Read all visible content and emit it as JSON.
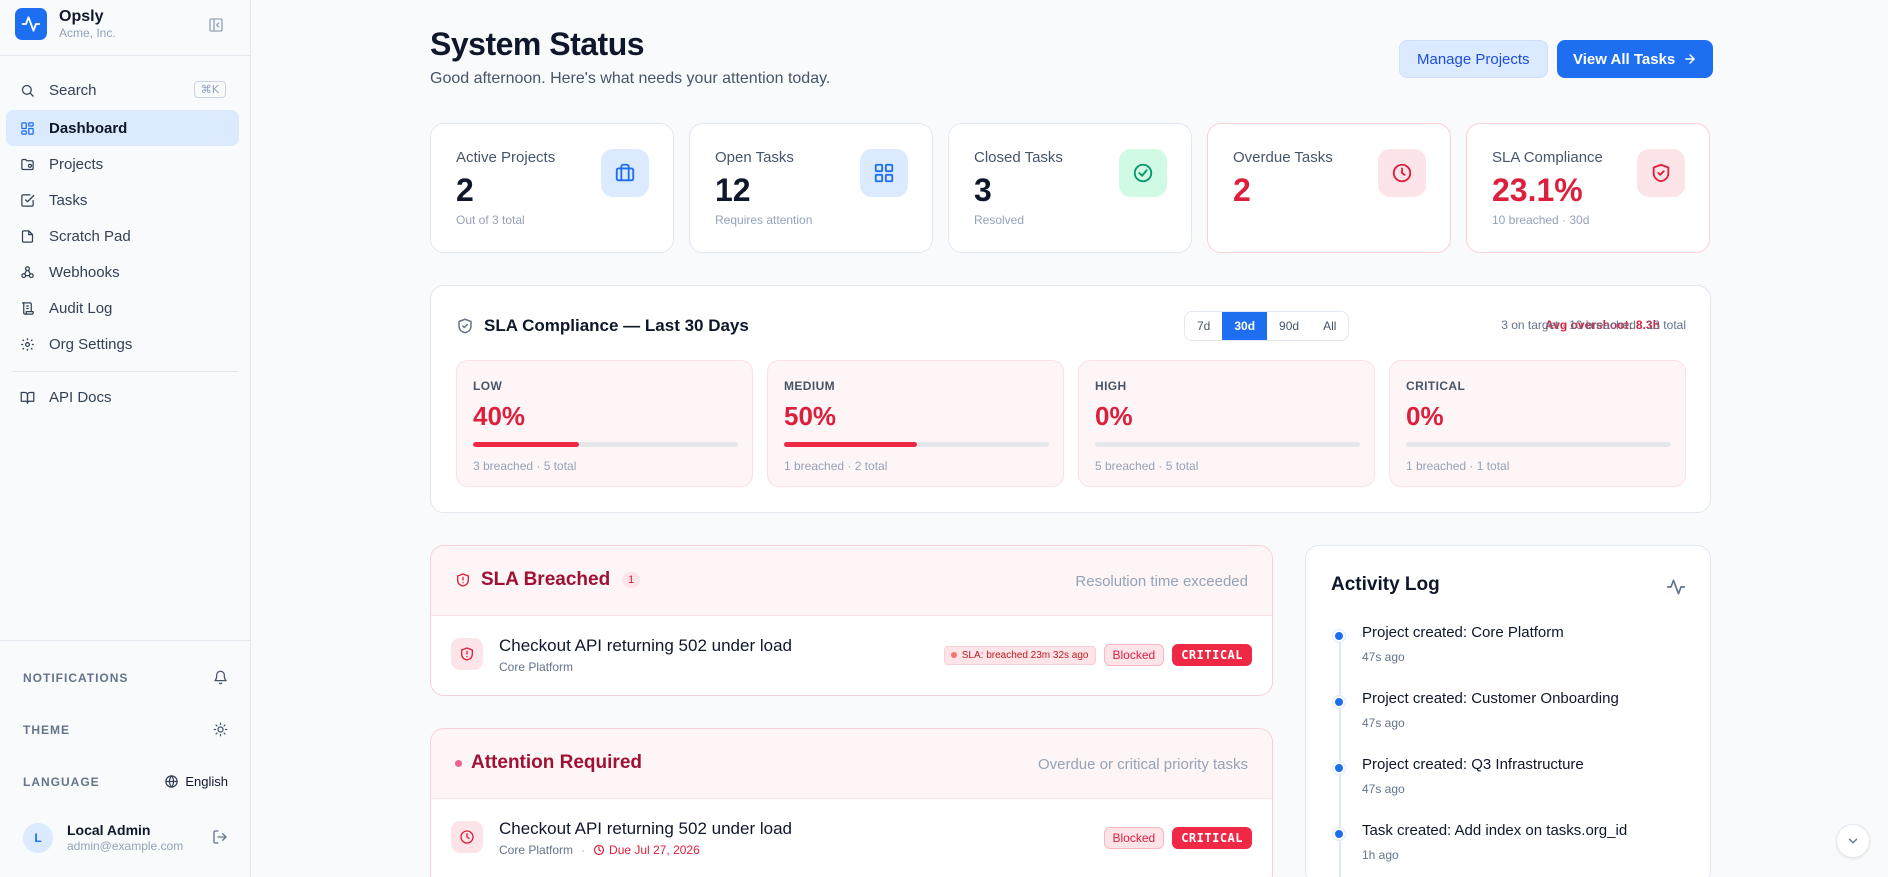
{
  "brand": {
    "name": "Opsly",
    "org": "Acme, Inc."
  },
  "sidebar": {
    "search": {
      "label": "Search",
      "shortcut": "⌘K"
    },
    "items": [
      {
        "label": "Dashboard",
        "icon": "grid-icon",
        "active": true
      },
      {
        "label": "Projects",
        "icon": "folder-icon"
      },
      {
        "label": "Tasks",
        "icon": "check-square-icon"
      },
      {
        "label": "Scratch Pad",
        "icon": "file-icon"
      },
      {
        "label": "Webhooks",
        "icon": "webhook-icon"
      },
      {
        "label": "Audit Log",
        "icon": "scroll-icon"
      },
      {
        "label": "Org Settings",
        "icon": "gear-icon"
      }
    ],
    "api_docs": {
      "label": "API Docs",
      "icon": "book-icon"
    },
    "notifications_label": "NOTIFICATIONS",
    "theme_label": "THEME",
    "language_label": "LANGUAGE",
    "language_value": "English",
    "user": {
      "initial": "L",
      "name": "Local Admin",
      "email": "admin@example.com"
    }
  },
  "header": {
    "title": "System Status",
    "subtitle": "Good afternoon. Here's what needs your attention today.",
    "manage_projects": "Manage Projects",
    "view_all_tasks": "View All Tasks"
  },
  "stats": [
    {
      "label": "Active Projects",
      "value": "2",
      "sub": "Out of 3 total",
      "icon": "briefcase-icon",
      "color": "#1d6ef0"
    },
    {
      "label": "Open Tasks",
      "value": "12",
      "sub": "Requires attention",
      "icon": "grid-icon",
      "color": "#1d6ef0"
    },
    {
      "label": "Closed Tasks",
      "value": "3",
      "sub": "Resolved",
      "icon": "check-circle-icon",
      "color": "#059669"
    },
    {
      "label": "Overdue Tasks",
      "value": "2",
      "sub": "",
      "icon": "clock-icon",
      "color": "#dc1f3d"
    },
    {
      "label": "SLA Compliance",
      "value": "23.1%",
      "sub": "10 breached · 30d",
      "icon": "shield-check-icon",
      "color": "#dc1f3d"
    }
  ],
  "sla": {
    "title": "SLA Compliance — Last 30 Days",
    "ranges": [
      "7d",
      "30d",
      "90d",
      "All"
    ],
    "selected_range": "30d",
    "overshoot": "Avg overshoot: 8.3h",
    "summary": "3 on target · 10 breached · 13 total",
    "priorities": [
      {
        "name": "LOW",
        "pct": "40%",
        "fill": 0.4,
        "sub": "3 breached · 5 total"
      },
      {
        "name": "MEDIUM",
        "pct": "50%",
        "fill": 0.5,
        "sub": "1 breached · 2 total"
      },
      {
        "name": "HIGH",
        "pct": "0%",
        "fill": 0,
        "sub": "5 breached · 5 total"
      },
      {
        "name": "CRITICAL",
        "pct": "0%",
        "fill": 0,
        "sub": "1 breached · 1 total"
      }
    ]
  },
  "breached": {
    "title": "SLA Breached",
    "count": "1",
    "note": "Resolution time exceeded",
    "task": {
      "title": "Checkout API returning 502 under load",
      "project": "Core Platform",
      "sla_tag": "SLA: breached 23m 32s ago",
      "status": "Blocked",
      "priority": "CRITICAL"
    }
  },
  "attention": {
    "title": "Attention Required",
    "note": "Overdue or critical priority tasks",
    "task": {
      "title": "Checkout API returning 502 under load",
      "project": "Core Platform",
      "separator": "·",
      "due": "Due Jul 27, 2026",
      "status": "Blocked",
      "priority": "CRITICAL"
    }
  },
  "activity": {
    "title": "Activity Log",
    "items": [
      {
        "text": "Project created: Core Platform",
        "time": "47s ago"
      },
      {
        "text": "Project created: Customer Onboarding",
        "time": "47s ago"
      },
      {
        "text": "Project created: Q3 Infrastructure",
        "time": "47s ago"
      },
      {
        "text": "Task created: Add index on tasks.org_id",
        "time": "1h ago"
      }
    ]
  },
  "colors": {
    "primary": "#1d6ef0",
    "danger": "#dc1f3d",
    "success": "#059669"
  }
}
